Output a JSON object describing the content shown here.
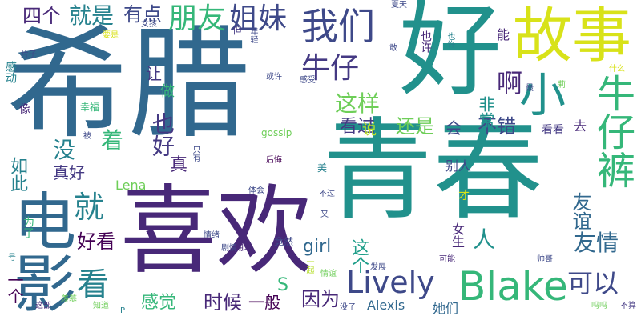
{
  "words": [
    {
      "text": "希腊",
      "color": "#31688e"
    },
    {
      "text": "青春",
      "color": "#21918c"
    },
    {
      "text": "好",
      "color": "#21918c"
    },
    {
      "text": "喜欢",
      "color": "#482878"
    },
    {
      "text": "故事",
      "color": "#d8e219"
    },
    {
      "text": "电影",
      "color": "#31688e"
    },
    {
      "text": "牛仔裤",
      "color": "#35b779"
    },
    {
      "text": "小",
      "color": "#21918c"
    },
    {
      "text": "Blake",
      "color": "#35b779"
    },
    {
      "text": "Lively",
      "color": "#3e4989"
    },
    {
      "text": "我们",
      "color": "#3e4989"
    },
    {
      "text": "朋友",
      "color": "#35b779"
    },
    {
      "text": "姐妹",
      "color": "#3e4989"
    },
    {
      "text": "牛仔",
      "color": "#443983"
    },
    {
      "text": "这样",
      "color": "#6ece58"
    },
    {
      "text": "就是",
      "color": "#26828e"
    },
    {
      "text": "四个",
      "color": "#482878"
    },
    {
      "text": "有点",
      "color": "#3e4989"
    },
    {
      "text": "看",
      "color": "#26828e"
    },
    {
      "text": "就",
      "color": "#26828e"
    },
    {
      "text": "啊",
      "color": "#482878"
    },
    {
      "text": "也好",
      "color": "#443983"
    },
    {
      "text": "还是",
      "color": "#6ece58"
    },
    {
      "text": "会",
      "color": "#3e4989"
    },
    {
      "text": "不错",
      "color": "#3e4989"
    },
    {
      "text": "友情",
      "color": "#31688e"
    },
    {
      "text": "可以",
      "color": "#3e4989"
    },
    {
      "text": "时候",
      "color": "#482878"
    },
    {
      "text": "一般",
      "color": "#440154"
    },
    {
      "text": "因为",
      "color": "#482878"
    },
    {
      "text": "感觉",
      "color": "#35b779"
    },
    {
      "text": "好看",
      "color": "#440154"
    },
    {
      "text": "让",
      "color": "#443983"
    },
    {
      "text": "做",
      "color": "#35b779"
    },
    {
      "text": "着",
      "color": "#35b779"
    },
    {
      "text": "没",
      "color": "#26828e"
    },
    {
      "text": "真",
      "color": "#482878"
    },
    {
      "text": "真好",
      "color": "#443983"
    },
    {
      "text": "如此",
      "color": "#26828e"
    },
    {
      "text": "看过",
      "color": "#443983"
    },
    {
      "text": "说",
      "color": "#b5de2b"
    },
    {
      "text": "S",
      "color": "#35b779"
    },
    {
      "text": "girl",
      "color": "#31688e"
    },
    {
      "text": "这个",
      "color": "#1f9e89"
    },
    {
      "text": "人",
      "color": "#21918c"
    },
    {
      "text": "友谊",
      "color": "#31688e"
    },
    {
      "text": "一个",
      "color": "#440154"
    },
    {
      "text": "非常",
      "color": "#21918c"
    },
    {
      "text": "看看",
      "color": "#443983"
    },
    {
      "text": "去",
      "color": "#482878"
    },
    {
      "text": "能",
      "color": "#482878"
    },
    {
      "text": "也许",
      "color": "#482878"
    },
    {
      "text": "Lena",
      "color": "#6ece58"
    },
    {
      "text": "Alexis",
      "color": "#31688e"
    },
    {
      "text": "她们",
      "color": "#31688e"
    },
    {
      "text": "别人",
      "color": "#3e4989"
    },
    {
      "text": "女生",
      "color": "#482878"
    },
    {
      "text": "才",
      "color": "#d8e219"
    },
    {
      "text": "不过",
      "color": "#3e4989"
    },
    {
      "text": "后悔",
      "color": "#440154"
    },
    {
      "text": "gossip",
      "color": "#6ece58"
    },
    {
      "text": "体会",
      "color": "#3e4989"
    },
    {
      "text": "美",
      "color": "#26828e"
    },
    {
      "text": "只有",
      "color": "#3e4989"
    },
    {
      "text": "竟然",
      "color": "#3e4989"
    },
    {
      "text": "情绪",
      "color": "#3e4989"
    },
    {
      "text": "剧情",
      "color": "#3e4989"
    },
    {
      "text": "那",
      "color": "#482878"
    },
    {
      "text": "为了",
      "color": "#35b779"
    },
    {
      "text": "一起",
      "color": "#b5de2b"
    },
    {
      "text": "情谊",
      "color": "#6ece58"
    },
    {
      "text": "发展",
      "color": "#3e4989"
    },
    {
      "text": "可能",
      "color": "#482878"
    },
    {
      "text": "帅哥",
      "color": "#3e4989"
    },
    {
      "text": "吗吗",
      "color": "#6ece58"
    },
    {
      "text": "不算",
      "color": "#443983"
    },
    {
      "text": "没了",
      "color": "#3e4989"
    },
    {
      "text": "知道",
      "color": "#6ece58"
    },
    {
      "text": "羡慕",
      "color": "#6ece58"
    },
    {
      "text": "这部",
      "color": "#482878"
    },
    {
      "text": "号",
      "color": "#26828e"
    },
    {
      "text": "P",
      "color": "#26828e"
    },
    {
      "text": "幸福",
      "color": "#35b779"
    },
    {
      "text": "像",
      "color": "#482878"
    },
    {
      "text": "被",
      "color": "#3e4989"
    },
    {
      "text": "片子",
      "color": "#3e4989"
    },
    {
      "text": "感动",
      "color": "#26828e"
    },
    {
      "text": "要是",
      "color": "#d8e219"
    },
    {
      "text": "女孩",
      "color": "#3e4989"
    },
    {
      "text": "但",
      "color": "#443983"
    },
    {
      "text": "年轻",
      "color": "#3e4989"
    },
    {
      "text": "夏天",
      "color": "#3e4989"
    },
    {
      "text": "也许",
      "color": "#26828e"
    },
    {
      "text": "敢",
      "color": "#3e4989"
    },
    {
      "text": "或许",
      "color": "#3e4989"
    },
    {
      "text": "感受",
      "color": "#3e4989"
    },
    {
      "text": "什么",
      "color": "#d8e219"
    },
    {
      "text": "莉",
      "color": "#6ece58"
    },
    {
      "text": "最",
      "color": "#3e4989"
    },
    {
      "text": "又",
      "color": "#3e4989"
    }
  ]
}
